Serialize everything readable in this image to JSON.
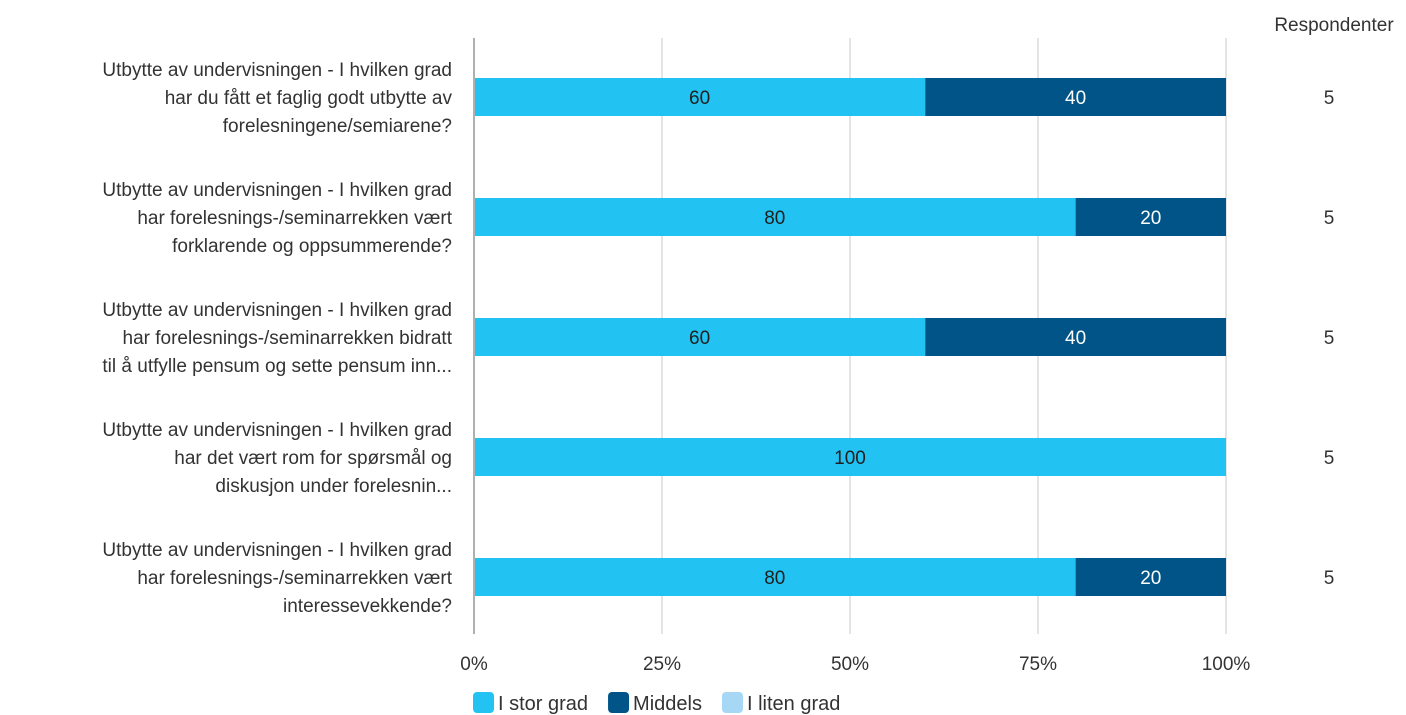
{
  "chart_data": {
    "type": "bar",
    "orientation": "horizontal",
    "stacked": true,
    "value_unit": "percent",
    "title": "",
    "xlabel": "",
    "ylabel": "",
    "xlim": [
      0,
      100
    ],
    "x_ticks": [
      "0%",
      "25%",
      "50%",
      "75%",
      "100%"
    ],
    "grid": true,
    "legend_position": "bottom",
    "categories": [
      "Utbytte av undervisningen - I hvilken grad har du fått et faglig godt utbytte av forelesningene/semiarene?",
      "Utbytte av undervisningen - I hvilken grad har forelesnings-/seminarrekken vært forklarende og oppsummerende?",
      "Utbytte av undervisningen - I hvilken grad har forelesnings-/seminarrekken bidratt til å utfylle pensum og sette pensum inn...",
      "Utbytte av undervisningen - I hvilken grad har det vært rom for spørsmål og diskusjon under forelesnin...",
      "Utbytte av undervisningen - I hvilken grad har forelesnings-/seminarrekken vært interessevekkende?"
    ],
    "category_label_lines": [
      [
        "Utbytte av undervisningen - I hvilken grad",
        "har du fått et faglig godt utbytte av",
        "forelesningene/semiarene?"
      ],
      [
        "Utbytte av undervisningen - I hvilken grad",
        "har forelesnings-/seminarrekken vært",
        "forklarende og oppsummerende?"
      ],
      [
        "Utbytte av undervisningen - I hvilken grad",
        "har forelesnings-/seminarrekken bidratt",
        "til å utfylle pensum og sette pensum inn..."
      ],
      [
        "Utbytte av undervisningen - I hvilken grad",
        "har det vært rom for spørsmål og",
        "diskusjon under forelesnin..."
      ],
      [
        "Utbytte av undervisningen - I hvilken grad",
        "har forelesnings-/seminarrekken vært",
        "interessevekkende?"
      ]
    ],
    "series": [
      {
        "name": "I stor grad",
        "color": "#22c3f2",
        "label_color": "#1f1f1f",
        "values": [
          60,
          80,
          60,
          100,
          80
        ]
      },
      {
        "name": "Middels",
        "color": "#005488",
        "label_color": "#ffffff",
        "values": [
          40,
          20,
          40,
          0,
          20
        ]
      },
      {
        "name": "I liten grad",
        "color": "#a6d7f5",
        "label_color": "#1f1f1f",
        "values": [
          0,
          0,
          0,
          0,
          0
        ]
      }
    ],
    "respondents_header": "Respondenter",
    "respondents": [
      5,
      5,
      5,
      5,
      5
    ]
  }
}
